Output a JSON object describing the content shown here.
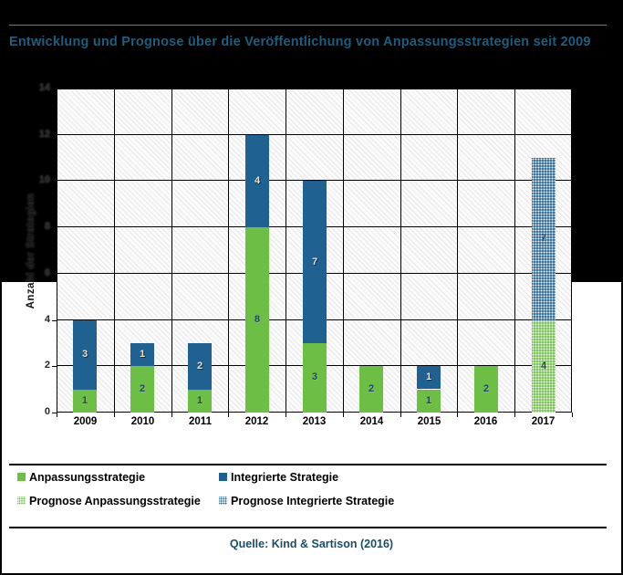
{
  "title": {
    "text": "Entwicklung und Prognose über die Veröffentlichung von Anpassungsstrategien seit 2009"
  },
  "source": {
    "text": "Quelle: Kind & Sartison (2016)"
  },
  "colors": {
    "green": "#6CBE45",
    "blue": "#1F6191",
    "title_text": "#1C5F80",
    "source_text": "#174F6B",
    "top_background": "#000000",
    "bottom_background": "#FFFFFF",
    "grid": "#000000"
  },
  "chart_data": {
    "type": "bar",
    "stacked": true,
    "title": "Entwicklung und Prognose über die Veröffentlichung von Anpassungsstrategien seit 2009",
    "categories": [
      "2009",
      "2010",
      "2011",
      "2012",
      "2013",
      "2014",
      "2015",
      "2016",
      "2017"
    ],
    "series": [
      {
        "name": "Anpassungsstrategie",
        "color": "#6CBE45",
        "pattern": "solid",
        "label_style": "dark",
        "values": [
          1,
          2,
          1,
          8,
          3,
          2,
          1,
          2,
          0
        ]
      },
      {
        "name": "Integrierte Strategie",
        "color": "#1F6191",
        "pattern": "solid",
        "label_style": "light",
        "values": [
          3,
          1,
          2,
          4,
          7,
          0,
          1,
          0,
          0
        ]
      },
      {
        "name": "Prognose Anpassungsstrategie",
        "color": "#6CBE45",
        "pattern": "dots",
        "label_style": "dark",
        "values": [
          0,
          0,
          0,
          0,
          0,
          0,
          0,
          0,
          4
        ]
      },
      {
        "name": "Prognose Integrierte Strategie",
        "color": "#1F6191",
        "pattern": "dots",
        "label_style": "dark",
        "values": [
          0,
          0,
          0,
          0,
          0,
          0,
          0,
          0,
          7
        ]
      }
    ],
    "xlabel": "",
    "ylabel": "Anzahl der Strategien",
    "ylim": [
      0,
      14
    ],
    "ytick_step": 2,
    "grid": true,
    "legend_position": "bottom"
  }
}
